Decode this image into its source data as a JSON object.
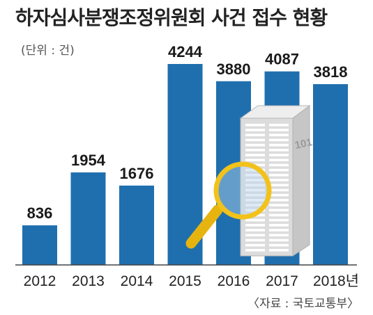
{
  "chart_data": {
    "type": "bar",
    "title": "하자심사분쟁조정위원회 사건 접수 현황",
    "unit_label": "(단위 : 건)",
    "source": "〈자료 : 국토교통부〉",
    "categories": [
      "2012",
      "2013",
      "2014",
      "2015",
      "2016",
      "2017",
      "2018년"
    ],
    "values": [
      836,
      1954,
      1676,
      4244,
      3880,
      4087,
      3818
    ],
    "value_labels": [
      "836",
      "1954",
      "1676",
      "4244",
      "3880",
      "4087",
      "3818"
    ],
    "ylim": [
      0,
      4244
    ],
    "grid": false,
    "bar_color": "#1f6fae",
    "decoration": {
      "building_label": "101",
      "building_color": "#d9d9d9",
      "magnifier_color": "#f2c21b"
    }
  }
}
